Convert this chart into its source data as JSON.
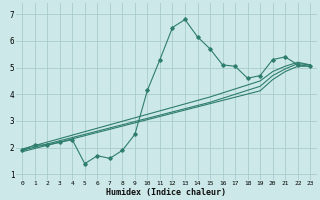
{
  "xlabel": "Humidex (Indice chaleur)",
  "bg_color": "#cce8e8",
  "line_color": "#2e7d6e",
  "grid_color": "#aacccc",
  "x_main": [
    0,
    1,
    2,
    3,
    4,
    5,
    6,
    7,
    8,
    9,
    10,
    11,
    12,
    13,
    14,
    15,
    16,
    17,
    18,
    19,
    20,
    21,
    22,
    23
  ],
  "y_main": [
    1.9,
    2.1,
    2.1,
    2.2,
    2.3,
    1.4,
    1.7,
    1.6,
    1.9,
    2.5,
    4.15,
    5.3,
    6.5,
    6.8,
    6.15,
    5.7,
    5.1,
    5.05,
    4.6,
    4.7,
    5.3,
    5.4,
    5.1,
    5.05
  ],
  "y_line1": [
    1.85,
    1.97,
    2.09,
    2.21,
    2.33,
    2.45,
    2.57,
    2.69,
    2.81,
    2.93,
    3.05,
    3.17,
    3.29,
    3.41,
    3.53,
    3.65,
    3.77,
    3.89,
    4.01,
    4.13,
    4.55,
    4.85,
    5.05,
    5.05
  ],
  "y_line2": [
    1.9,
    2.02,
    2.14,
    2.26,
    2.38,
    2.5,
    2.62,
    2.74,
    2.86,
    2.98,
    3.1,
    3.22,
    3.34,
    3.46,
    3.58,
    3.7,
    3.85,
    4.0,
    4.15,
    4.3,
    4.7,
    4.95,
    5.15,
    5.1
  ],
  "y_line3": [
    1.95,
    2.08,
    2.21,
    2.34,
    2.47,
    2.6,
    2.73,
    2.86,
    2.99,
    3.12,
    3.25,
    3.38,
    3.51,
    3.64,
    3.77,
    3.9,
    4.05,
    4.2,
    4.35,
    4.5,
    4.85,
    5.05,
    5.2,
    5.1
  ],
  "ylim": [
    0.8,
    7.4
  ],
  "xlim": [
    -0.5,
    23.5
  ],
  "yticks": [
    1,
    2,
    3,
    4,
    5,
    6,
    7
  ],
  "xticks": [
    0,
    1,
    2,
    3,
    4,
    5,
    6,
    7,
    8,
    9,
    10,
    11,
    12,
    13,
    14,
    15,
    16,
    17,
    18,
    19,
    20,
    21,
    22,
    23
  ]
}
